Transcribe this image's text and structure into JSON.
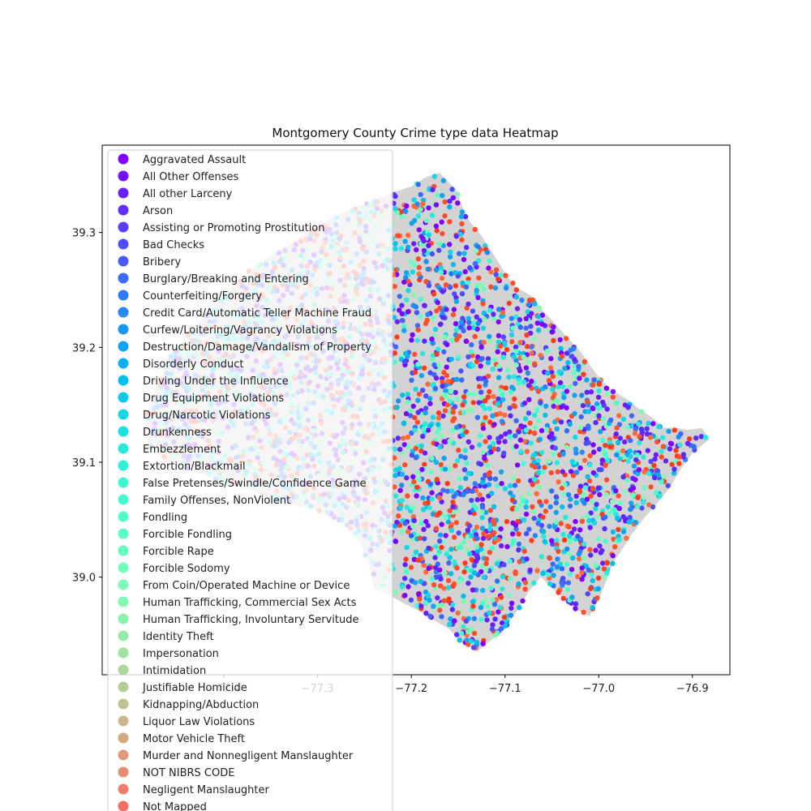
{
  "chart_data": {
    "type": "scatter",
    "title": "Montgomery County Crime type data Heatmap",
    "xlabel": "",
    "ylabel": "",
    "xlim": [
      -77.53,
      -76.86
    ],
    "ylim": [
      38.915,
      39.376
    ],
    "x_ticks": [
      "−77.4",
      "−77.3",
      "−77.2",
      "−77.1",
      "−77.0",
      "−76.9"
    ],
    "x_tick_values": [
      -77.4,
      -77.3,
      -77.2,
      -77.1,
      -77.0,
      -76.9
    ],
    "y_ticks": [
      "39.0",
      "39.1",
      "39.2",
      "39.3"
    ],
    "y_tick_values": [
      39.0,
      39.1,
      39.2,
      39.3
    ],
    "grid": false,
    "legend_position": "upper-left",
    "colormap": "rainbow",
    "county_fill_color": "#d3d3d3",
    "legend_face_alpha": 0.8,
    "county_outline_lonlat": [
      [
        -77.17,
        39.352
      ],
      [
        -77.152,
        39.337
      ],
      [
        -77.147,
        39.325
      ],
      [
        -77.138,
        39.31
      ],
      [
        -77.125,
        39.297
      ],
      [
        -77.114,
        39.283
      ],
      [
        -77.1,
        39.265
      ],
      [
        -77.088,
        39.252
      ],
      [
        -77.072,
        39.245
      ],
      [
        -77.06,
        39.232
      ],
      [
        -77.048,
        39.222
      ],
      [
        -77.035,
        39.21
      ],
      [
        -77.02,
        39.197
      ],
      [
        -77.01,
        39.185
      ],
      [
        -76.998,
        39.172
      ],
      [
        -76.985,
        39.162
      ],
      [
        -76.97,
        39.155
      ],
      [
        -76.958,
        39.147
      ],
      [
        -76.945,
        39.14
      ],
      [
        -76.93,
        39.13
      ],
      [
        -76.918,
        39.13
      ],
      [
        -76.905,
        39.128
      ],
      [
        -76.89,
        39.13
      ],
      [
        -76.882,
        39.12
      ],
      [
        -76.9,
        39.108
      ],
      [
        -76.913,
        39.093
      ],
      [
        -76.925,
        39.077
      ],
      [
        -76.94,
        39.062
      ],
      [
        -76.953,
        39.05
      ],
      [
        -76.965,
        39.037
      ],
      [
        -76.975,
        39.024
      ],
      [
        -76.985,
        39.012
      ],
      [
        -76.993,
        38.995
      ],
      [
        -77.0,
        38.98
      ],
      [
        -77.01,
        38.966
      ],
      [
        -77.025,
        38.972
      ],
      [
        -77.04,
        38.983
      ],
      [
        -77.053,
        38.993
      ],
      [
        -77.062,
        39.0
      ],
      [
        -77.075,
        38.987
      ],
      [
        -77.085,
        38.973
      ],
      [
        -77.1,
        38.956
      ],
      [
        -77.115,
        38.945
      ],
      [
        -77.13,
        38.935
      ],
      [
        -77.145,
        38.942
      ],
      [
        -77.16,
        38.955
      ],
      [
        -77.175,
        38.962
      ],
      [
        -77.19,
        38.97
      ],
      [
        -77.21,
        38.978
      ],
      [
        -77.225,
        38.985
      ],
      [
        -77.24,
        38.99
      ],
      [
        -77.245,
        39.01
      ],
      [
        -77.255,
        39.03
      ],
      [
        -77.27,
        39.045
      ],
      [
        -77.29,
        39.055
      ],
      [
        -77.31,
        39.06
      ],
      [
        -77.34,
        39.065
      ],
      [
        -77.37,
        39.075
      ],
      [
        -77.4,
        39.082
      ],
      [
        -77.43,
        39.092
      ],
      [
        -77.46,
        39.1
      ],
      [
        -77.48,
        39.112
      ],
      [
        -77.485,
        39.13
      ],
      [
        -77.48,
        39.15
      ],
      [
        -77.47,
        39.17
      ],
      [
        -77.46,
        39.19
      ],
      [
        -77.445,
        39.205
      ],
      [
        -77.43,
        39.22
      ],
      [
        -77.41,
        39.235
      ],
      [
        -77.395,
        39.25
      ],
      [
        -77.38,
        39.262
      ],
      [
        -77.36,
        39.275
      ],
      [
        -77.34,
        39.285
      ],
      [
        -77.32,
        39.295
      ],
      [
        -77.3,
        39.305
      ],
      [
        -77.28,
        39.315
      ],
      [
        -77.26,
        39.322
      ],
      [
        -77.24,
        39.328
      ],
      [
        -77.22,
        39.335
      ],
      [
        -77.2,
        39.34
      ],
      [
        -77.185,
        39.348
      ]
    ],
    "categories": [
      "Aggravated Assault",
      "All Other Offenses",
      "All other Larceny",
      "Arson",
      "Assisting or Promoting Prostitution",
      "Bad Checks",
      "Bribery",
      "Burglary/Breaking and Entering",
      "Counterfeiting/Forgery",
      "Credit Card/Automatic Teller Machine Fraud",
      "Curfew/Loitering/Vagrancy Violations",
      "Destruction/Damage/Vandalism of Property",
      "Disorderly Conduct",
      "Driving Under the Influence",
      "Drug Equipment Violations",
      "Drug/Narcotic Violations",
      "Drunkenness",
      "Embezzlement",
      "Extortion/Blackmail",
      "False Pretenses/Swindle/Confidence Game",
      "Family Offenses, NonViolent",
      "Fondling",
      "Forcible Fondling",
      "Forcible Rape",
      "Forcible Sodomy",
      "From Coin/Operated Machine or Device",
      "Human Trafficking, Commercial Sex Acts",
      "Human Trafficking, Involuntary Servitude",
      "Identity Theft",
      "Impersonation",
      "Intimidation",
      "Justifiable Homicide",
      "Kidnapping/Abduction",
      "Liquor Law Violations",
      "Motor Vehicle Theft",
      "Murder and Nonnegligent Manslaughter",
      "NOT NIBRS CODE",
      "Negligent Manslaughter",
      "Not Mapped"
    ],
    "legend_colors": [
      "#8000ff",
      "#7610ff",
      "#6c1ffe",
      "#622ffe",
      "#583efd",
      "#4e4dfc",
      "#445cfb",
      "#3a6bf9",
      "#307af7",
      "#2688f5",
      "#1c96f3",
      "#12a4f0",
      "#08b1ee",
      "#02beeb",
      "#0ccae7",
      "#16d5e4",
      "#20dfe0",
      "#2ae8dc",
      "#34f0d8",
      "#3ef6d3",
      "#48fbcf",
      "#52fecb",
      "#5cffc6",
      "#66ffc1",
      "#70fdbc",
      "#7afbb7",
      "#84f7b2",
      "#8ef1ac",
      "#98eaa7",
      "#a2e2a1",
      "#acd99b",
      "#b6ce95",
      "#c0c38f",
      "#cab688",
      "#d4a982",
      "#de9a7b",
      "#e88b74",
      "#f27c6d",
      "#fc6c66"
    ],
    "point_palette": [
      "#8000ff",
      "#6c1ffe",
      "#4e4dfc",
      "#3a6bf9",
      "#2688f5",
      "#12a4f0",
      "#02beeb",
      "#16d5e4",
      "#2ae8dc",
      "#48fbcf",
      "#66ffc1",
      "#84f7b2",
      "#ff4d2a",
      "#ff3b1e",
      "#ff6a3a",
      "#8000ff",
      "#5a2bff",
      "#ff5030"
    ]
  }
}
